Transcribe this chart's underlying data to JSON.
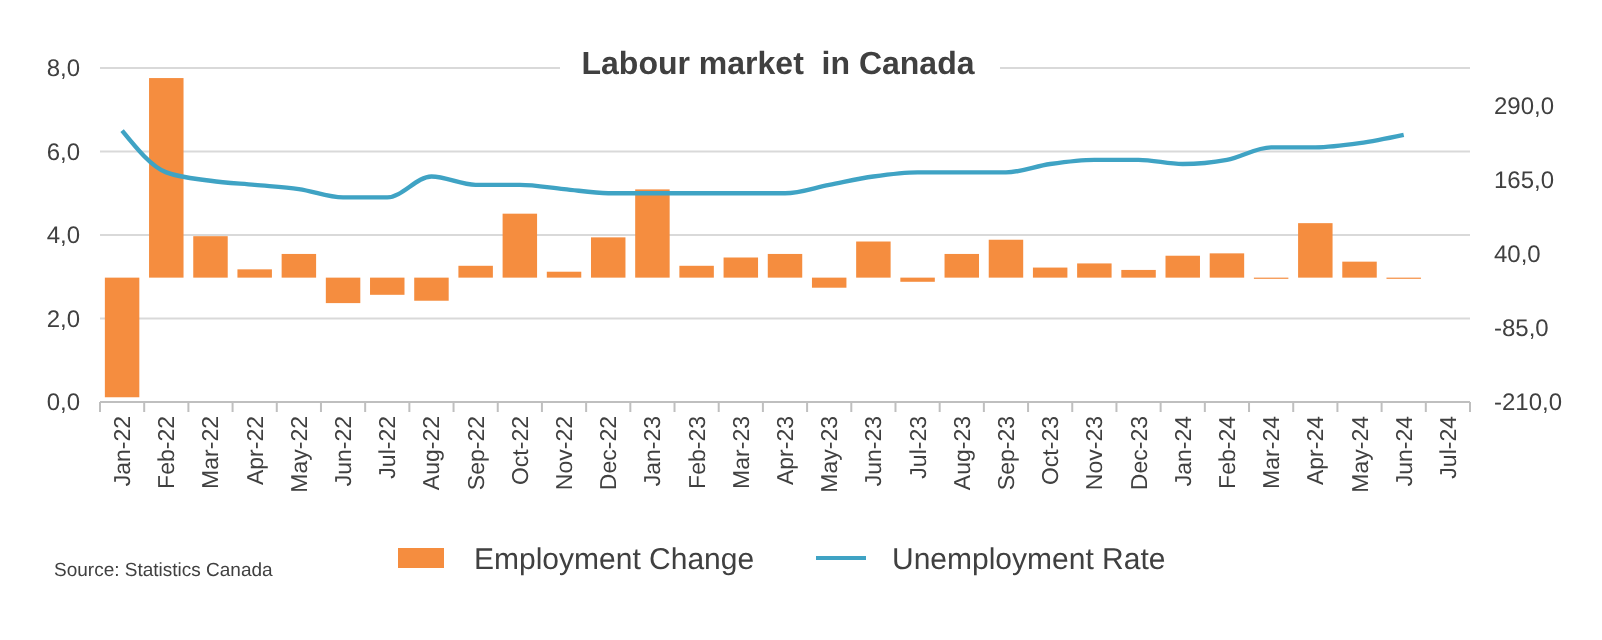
{
  "chart_data": {
    "type": "bar",
    "title": "Labour market  in Canada",
    "categories": [
      "Jan-22",
      "Feb-22",
      "Mar-22",
      "Apr-22",
      "May-22",
      "Jun-22",
      "Jul-22",
      "Aug-22",
      "Sep-22",
      "Oct-22",
      "Nov-22",
      "Dec-22",
      "Jan-23",
      "Feb-23",
      "Mar-23",
      "Apr-23",
      "May-23",
      "Jun-23",
      "Jul-23",
      "Aug-23",
      "Sep-23",
      "Oct-23",
      "Nov-23",
      "Dec-23",
      "Jan-24",
      "Feb-24",
      "Mar-24",
      "Apr-24",
      "May-24",
      "Jun-24",
      "Jul-24"
    ],
    "series": [
      {
        "name": "Employment Change",
        "axis": "y2",
        "color": "#f58d3f",
        "values": [
          -202,
          337,
          70,
          14,
          40,
          -43,
          -29,
          -39,
          20,
          108,
          10,
          68,
          149,
          20,
          34,
          40,
          -17,
          61,
          -7,
          40,
          64,
          17,
          24,
          13,
          37,
          41,
          -2,
          92,
          27,
          -2,
          null
        ]
      },
      {
        "name": "Unemployment Rate",
        "type": "line",
        "color": "#3fa3c4",
        "values": [
          6.5,
          5.5,
          5.3,
          5.2,
          5.1,
          4.9,
          4.9,
          5.4,
          5.2,
          5.2,
          5.1,
          5.0,
          5.0,
          5.0,
          5.0,
          5.0,
          5.2,
          5.4,
          5.5,
          5.5,
          5.5,
          5.7,
          5.8,
          5.8,
          5.7,
          5.8,
          6.1,
          6.1,
          6.2,
          6.4,
          null
        ]
      }
    ],
    "ylim": [
      0,
      8
    ],
    "yticks": [
      {
        "value": 0,
        "label": "0,0"
      },
      {
        "value": 2,
        "label": "2,0"
      },
      {
        "value": 4,
        "label": "4,0"
      },
      {
        "value": 6,
        "label": "6,0"
      },
      {
        "value": 8,
        "label": "8,0"
      }
    ],
    "y2lim": [
      -210,
      354
    ],
    "y2ticks": [
      {
        "value": -210,
        "label": "-210,0"
      },
      {
        "value": -85,
        "label": "-85,0"
      },
      {
        "value": 40,
        "label": "40,0"
      },
      {
        "value": 165,
        "label": "165,0"
      },
      {
        "value": 290,
        "label": "290,0"
      }
    ],
    "grid": "y",
    "legend": "bottom",
    "annotations": [
      "Source: Statistics Canada"
    ]
  }
}
